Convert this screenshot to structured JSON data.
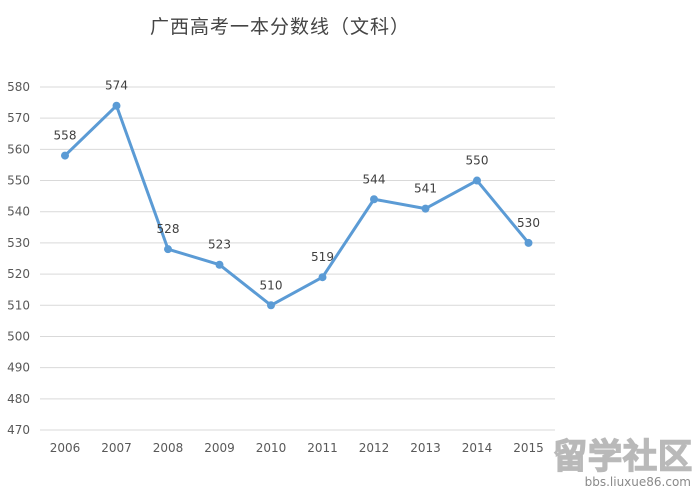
{
  "chart_data": {
    "type": "line",
    "title": "广西高考一本分数线（文科）",
    "xlabel": "",
    "ylabel": "",
    "categories": [
      "2006",
      "2007",
      "2008",
      "2009",
      "2010",
      "2011",
      "2012",
      "2013",
      "2014",
      "2015"
    ],
    "series": [
      {
        "values": [
          558,
          574,
          528,
          523,
          510,
          519,
          544,
          541,
          550,
          530
        ],
        "color": "#5b9bd5"
      }
    ],
    "ylim": [
      470,
      580
    ],
    "yticks": [
      470,
      480,
      490,
      500,
      510,
      520,
      530,
      540,
      550,
      560,
      570,
      580
    ],
    "grid": true,
    "data_labels": true,
    "legend": "none"
  },
  "watermark": {
    "main": "留学社区",
    "sub": "bbs.liuxue86.com"
  }
}
